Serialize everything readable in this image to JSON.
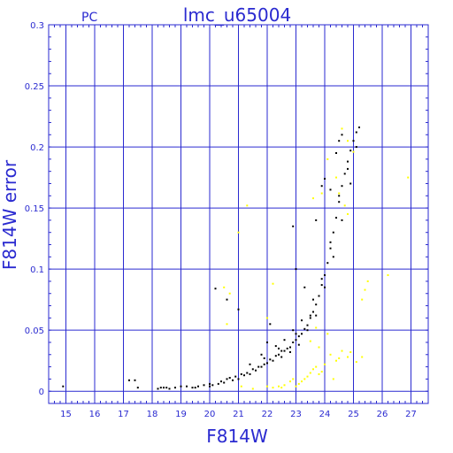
{
  "colors": {
    "axis": "#2a2ad0",
    "grid": "#2a2ad0",
    "primary_points": "#000000",
    "secondary_points": "#ffff00"
  },
  "chart_data": {
    "type": "scatter",
    "title": "lmc_u65004",
    "corner_label": "PC",
    "xlabel": "F814W",
    "ylabel": "F814W error",
    "xlim": [
      14.4,
      27.6
    ],
    "ylim": [
      -0.01,
      0.3
    ],
    "x_ticks": [
      "15",
      "16",
      "17",
      "18",
      "19",
      "20",
      "21",
      "22",
      "23",
      "24",
      "25",
      "26",
      "27"
    ],
    "y_ticks": [
      "0",
      "0.05",
      "0.1",
      "0.15",
      "0.2",
      "0.25",
      "0.3"
    ],
    "grid": true,
    "series": [
      {
        "color": "#000000",
        "points": [
          [
            14.9,
            0.004
          ],
          [
            17.2,
            0.009
          ],
          [
            17.4,
            0.009
          ],
          [
            17.5,
            0.003
          ],
          [
            18.2,
            0.002
          ],
          [
            18.3,
            0.003
          ],
          [
            18.4,
            0.003
          ],
          [
            18.5,
            0.003
          ],
          [
            18.8,
            0.003
          ],
          [
            19.0,
            0.004
          ],
          [
            19.2,
            0.004
          ],
          [
            19.4,
            0.003
          ],
          [
            19.6,
            0.004
          ],
          [
            19.8,
            0.005
          ],
          [
            20.0,
            0.006
          ],
          [
            20.1,
            0.005
          ],
          [
            20.3,
            0.006
          ],
          [
            20.5,
            0.007
          ],
          [
            20.6,
            0.01
          ],
          [
            20.8,
            0.009
          ],
          [
            20.9,
            0.012
          ],
          [
            21.0,
            0.01
          ],
          [
            21.1,
            0.014
          ],
          [
            21.2,
            0.013
          ],
          [
            21.3,
            0.015
          ],
          [
            21.4,
            0.014
          ],
          [
            21.5,
            0.018
          ],
          [
            21.6,
            0.017
          ],
          [
            21.7,
            0.02
          ],
          [
            21.8,
            0.02
          ],
          [
            21.9,
            0.022
          ],
          [
            22.0,
            0.023
          ],
          [
            22.1,
            0.026
          ],
          [
            22.2,
            0.025
          ],
          [
            22.3,
            0.029
          ],
          [
            22.4,
            0.03
          ],
          [
            22.5,
            0.033
          ],
          [
            22.6,
            0.033
          ],
          [
            22.7,
            0.035
          ],
          [
            22.8,
            0.036
          ],
          [
            22.9,
            0.04
          ],
          [
            23.0,
            0.042
          ],
          [
            23.1,
            0.045
          ],
          [
            23.2,
            0.047
          ],
          [
            23.3,
            0.051
          ],
          [
            23.4,
            0.054
          ],
          [
            23.5,
            0.06
          ],
          [
            23.6,
            0.065
          ],
          [
            23.7,
            0.071
          ],
          [
            23.8,
            0.078
          ],
          [
            23.9,
            0.087
          ],
          [
            24.0,
            0.095
          ],
          [
            24.1,
            0.105
          ],
          [
            24.2,
            0.117
          ],
          [
            24.3,
            0.13
          ],
          [
            24.4,
            0.142
          ],
          [
            24.5,
            0.155
          ],
          [
            24.6,
            0.168
          ],
          [
            24.7,
            0.178
          ],
          [
            24.8,
            0.188
          ],
          [
            24.9,
            0.197
          ],
          [
            25.0,
            0.205
          ],
          [
            25.1,
            0.212
          ],
          [
            25.2,
            0.216
          ],
          [
            20.2,
            0.084
          ],
          [
            20.6,
            0.075
          ],
          [
            21.0,
            0.067
          ],
          [
            22.0,
            0.04
          ],
          [
            22.1,
            0.055
          ],
          [
            22.9,
            0.135
          ],
          [
            23.0,
            0.1
          ],
          [
            23.3,
            0.085
          ],
          [
            23.7,
            0.14
          ],
          [
            23.9,
            0.168
          ],
          [
            24.0,
            0.174
          ],
          [
            24.2,
            0.165
          ],
          [
            24.4,
            0.195
          ],
          [
            24.5,
            0.205
          ],
          [
            24.6,
            0.21
          ],
          [
            21.8,
            0.03
          ],
          [
            22.3,
            0.037
          ],
          [
            22.6,
            0.042
          ],
          [
            22.9,
            0.05
          ],
          [
            23.2,
            0.058
          ],
          [
            23.6,
            0.075
          ],
          [
            23.9,
            0.092
          ],
          [
            24.2,
            0.122
          ],
          [
            24.5,
            0.16
          ],
          [
            24.8,
            0.182
          ],
          [
            22.5,
            0.028
          ],
          [
            22.8,
            0.032
          ],
          [
            23.1,
            0.038
          ],
          [
            23.4,
            0.05
          ],
          [
            23.7,
            0.062
          ],
          [
            24.0,
            0.085
          ],
          [
            24.3,
            0.11
          ],
          [
            24.6,
            0.14
          ],
          [
            24.9,
            0.17
          ],
          [
            25.1,
            0.2
          ],
          [
            21.4,
            0.022
          ],
          [
            21.9,
            0.027
          ],
          [
            22.4,
            0.035
          ],
          [
            23.0,
            0.047
          ],
          [
            23.5,
            0.062
          ],
          [
            20.4,
            0.008
          ],
          [
            20.7,
            0.011
          ],
          [
            20.0,
            0.004
          ],
          [
            19.5,
            0.003
          ],
          [
            18.6,
            0.002
          ]
        ]
      },
      {
        "color": "#ffff00",
        "points": [
          [
            20.5,
            0.085
          ],
          [
            20.7,
            0.08
          ],
          [
            20.6,
            0.055
          ],
          [
            21.0,
            0.13
          ],
          [
            21.3,
            0.152
          ],
          [
            22.0,
            0.06
          ],
          [
            22.2,
            0.088
          ],
          [
            21.1,
            0.004
          ],
          [
            21.5,
            0.002
          ],
          [
            22.0,
            0.004
          ],
          [
            22.2,
            0.003
          ],
          [
            22.4,
            0.004
          ],
          [
            22.6,
            0.005
          ],
          [
            22.8,
            0.008
          ],
          [
            22.9,
            0.01
          ],
          [
            23.0,
            0.004
          ],
          [
            23.1,
            0.006
          ],
          [
            23.2,
            0.008
          ],
          [
            23.3,
            0.01
          ],
          [
            23.4,
            0.012
          ],
          [
            23.5,
            0.015
          ],
          [
            23.6,
            0.018
          ],
          [
            23.7,
            0.02
          ],
          [
            23.8,
            0.014
          ],
          [
            24.0,
            0.022
          ],
          [
            24.2,
            0.03
          ],
          [
            24.4,
            0.025
          ],
          [
            24.6,
            0.033
          ],
          [
            24.8,
            0.028
          ],
          [
            24.9,
            0.032
          ],
          [
            25.1,
            0.024
          ],
          [
            25.3,
            0.028
          ],
          [
            25.4,
            0.083
          ],
          [
            25.5,
            0.09
          ],
          [
            25.3,
            0.075
          ],
          [
            26.2,
            0.095
          ],
          [
            26.9,
            0.175
          ],
          [
            24.6,
            0.215
          ],
          [
            24.8,
            0.205
          ],
          [
            25.0,
            0.196
          ],
          [
            24.5,
            0.162
          ],
          [
            24.7,
            0.152
          ],
          [
            23.7,
            0.052
          ],
          [
            23.5,
            0.041
          ],
          [
            24.5,
            0.027
          ],
          [
            24.1,
            0.047
          ],
          [
            23.8,
            0.036
          ],
          [
            24.3,
            0.01
          ],
          [
            23.9,
            0.016
          ],
          [
            22.5,
            0.003
          ],
          [
            23.6,
            0.158
          ],
          [
            23.9,
            0.162
          ],
          [
            24.1,
            0.19
          ],
          [
            24.4,
            0.175
          ],
          [
            24.8,
            0.145
          ]
        ]
      }
    ]
  }
}
